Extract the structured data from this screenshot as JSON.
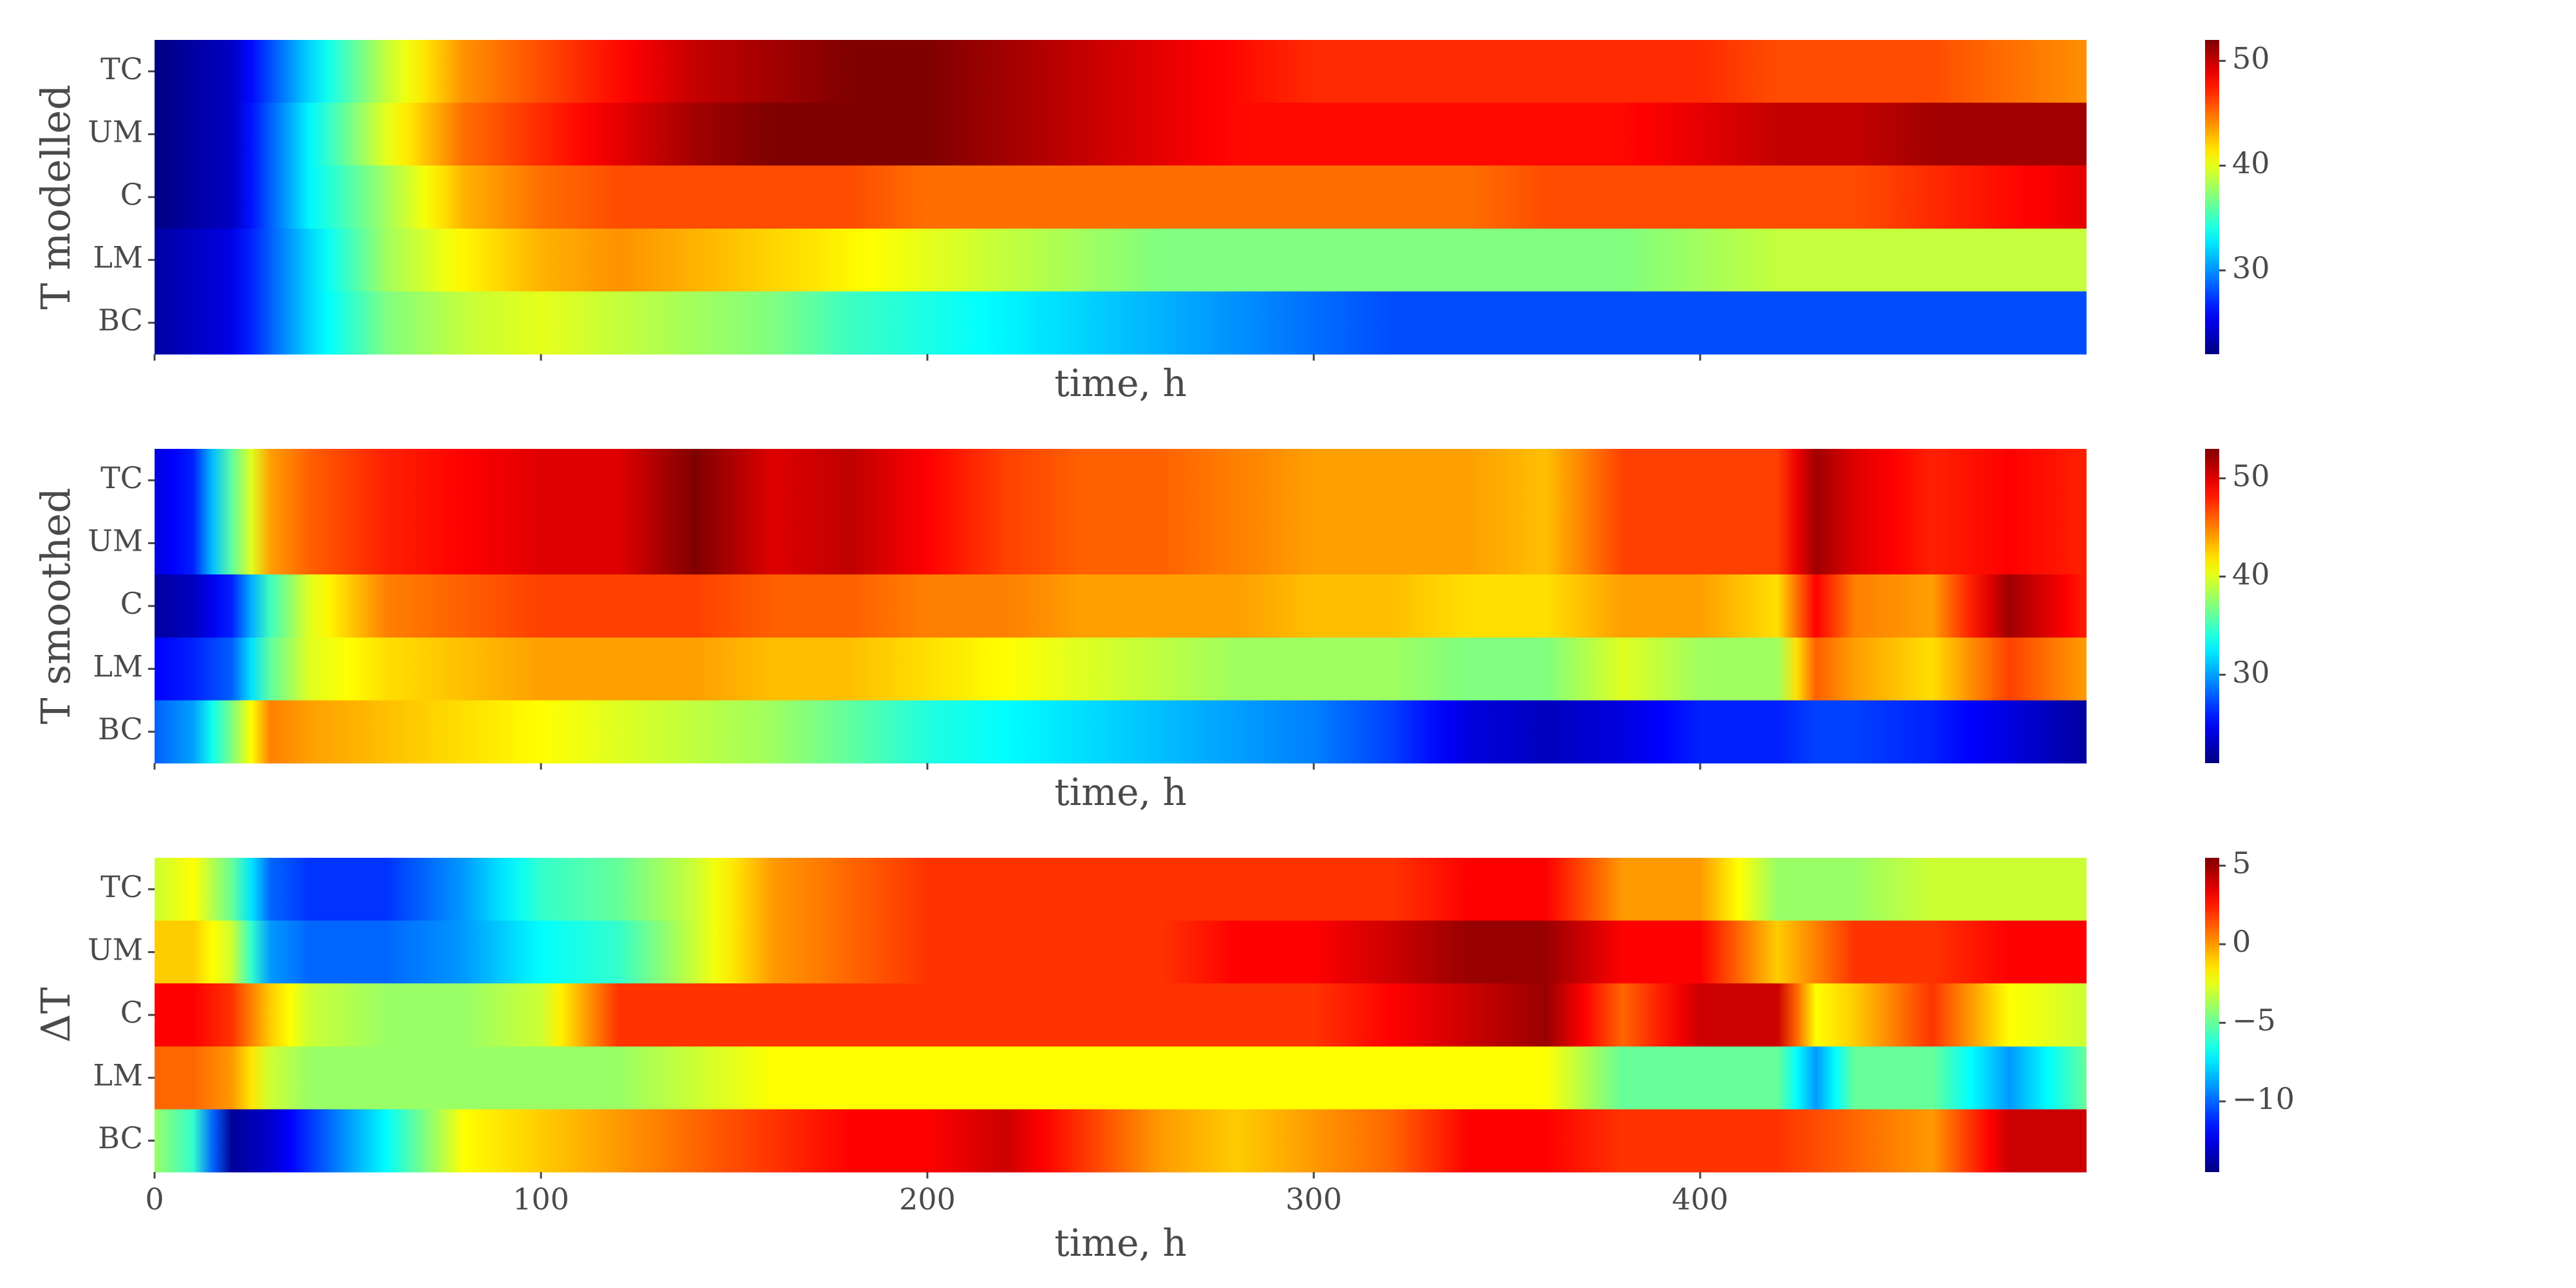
{
  "chart_data": [
    {
      "type": "heatmap",
      "ylabel": "T modelled",
      "xlabel": "time, h",
      "rows": [
        "TC",
        "UM",
        "C",
        "LM",
        "BC"
      ],
      "x_range": [
        0,
        500
      ],
      "x_ticks": [
        0,
        100,
        200,
        300,
        400
      ],
      "x_tick_labels_shown": false,
      "colormap": "jet",
      "vmin": 22,
      "vmax": 52,
      "colorbar_ticks": [
        30,
        40,
        50
      ],
      "colorbar_tick_labels": [
        "30",
        "40",
        "50"
      ],
      "series": [
        {
          "name": "TC",
          "x": [
            0,
            20,
            40,
            60,
            80,
            100,
            120,
            140,
            160,
            180,
            200,
            220,
            240,
            260,
            280,
            300,
            320,
            340,
            360,
            380,
            400,
            420,
            440,
            460,
            480,
            500
          ],
          "values": [
            22,
            24,
            32,
            39,
            44,
            46,
            48,
            50,
            51,
            52,
            52,
            51,
            50,
            49,
            48,
            47,
            47,
            47,
            47,
            47,
            47,
            46,
            46,
            46,
            45,
            44
          ]
        },
        {
          "name": "UM",
          "x": [
            0,
            20,
            40,
            60,
            80,
            100,
            120,
            140,
            160,
            180,
            200,
            220,
            240,
            260,
            280,
            300,
            320,
            340,
            360,
            380,
            400,
            420,
            440,
            460,
            480,
            500
          ],
          "values": [
            22,
            24,
            33,
            40,
            45,
            47,
            49,
            51,
            52,
            52,
            52,
            51,
            50,
            49,
            48,
            48,
            48,
            48,
            48,
            48,
            49,
            50,
            50,
            51,
            51,
            51
          ]
        },
        {
          "name": "C",
          "x": [
            0,
            20,
            40,
            60,
            80,
            100,
            120,
            140,
            160,
            180,
            200,
            220,
            240,
            260,
            280,
            300,
            320,
            340,
            360,
            380,
            400,
            420,
            440,
            460,
            480,
            500
          ],
          "values": [
            22,
            24,
            33,
            38,
            43,
            45,
            46,
            46,
            46,
            46,
            45,
            45,
            45,
            45,
            45,
            45,
            45,
            45,
            46,
            46,
            46,
            46,
            46,
            47,
            48,
            49
          ]
        },
        {
          "name": "LM",
          "x": [
            0,
            20,
            40,
            60,
            80,
            100,
            120,
            140,
            160,
            180,
            200,
            220,
            240,
            260,
            280,
            300,
            320,
            340,
            360,
            380,
            400,
            420,
            440,
            460,
            480,
            500
          ],
          "values": [
            23,
            25,
            32,
            38,
            41,
            43,
            44,
            43,
            42,
            41,
            40,
            39,
            38,
            37,
            37,
            37,
            37,
            37,
            37,
            37,
            38,
            39,
            39,
            39,
            39,
            39
          ]
        },
        {
          "name": "BC",
          "x": [
            0,
            20,
            40,
            60,
            80,
            100,
            120,
            140,
            160,
            180,
            200,
            220,
            240,
            260,
            280,
            300,
            320,
            340,
            360,
            380,
            400,
            420,
            440,
            460,
            480,
            500
          ],
          "values": [
            23,
            25,
            32,
            37,
            39,
            40,
            39,
            38,
            37,
            35,
            34,
            33,
            32,
            31,
            30,
            29,
            28,
            28,
            28,
            28,
            28,
            28,
            28,
            28,
            28,
            28
          ]
        }
      ]
    },
    {
      "type": "heatmap",
      "ylabel": "T smoothed",
      "xlabel": "time, h",
      "rows": [
        "TC",
        "UM",
        "C",
        "LM",
        "BC"
      ],
      "x_range": [
        0,
        500
      ],
      "x_ticks": [
        0,
        100,
        200,
        300,
        400
      ],
      "x_tick_labels_shown": false,
      "colormap": "jet",
      "vmin": 21,
      "vmax": 53,
      "colorbar_ticks": [
        30,
        40,
        50
      ],
      "colorbar_tick_labels": [
        "30",
        "40",
        "50"
      ],
      "series": [
        {
          "name": "TC",
          "x": [
            0,
            10,
            20,
            30,
            40,
            60,
            80,
            100,
            120,
            140,
            160,
            180,
            200,
            220,
            240,
            260,
            280,
            300,
            320,
            340,
            360,
            380,
            400,
            420,
            430,
            440,
            460,
            480,
            500
          ],
          "values": [
            24,
            26,
            36,
            44,
            46,
            48,
            49,
            50,
            50,
            53,
            50,
            51,
            49,
            47,
            46,
            46,
            45,
            44,
            44,
            44,
            43,
            47,
            47,
            47,
            52,
            50,
            48,
            49,
            48
          ]
        },
        {
          "name": "UM",
          "x": [
            0,
            10,
            20,
            30,
            40,
            60,
            80,
            100,
            120,
            140,
            160,
            180,
            200,
            220,
            240,
            260,
            280,
            300,
            320,
            340,
            360,
            380,
            400,
            420,
            430,
            440,
            460,
            480,
            500
          ],
          "values": [
            24,
            26,
            36,
            44,
            46,
            48,
            49,
            50,
            50,
            53,
            50,
            51,
            49,
            47,
            46,
            46,
            45,
            44,
            44,
            44,
            43,
            47,
            47,
            47,
            52,
            50,
            48,
            49,
            48
          ]
        },
        {
          "name": "C",
          "x": [
            0,
            10,
            20,
            30,
            40,
            60,
            80,
            100,
            120,
            140,
            160,
            180,
            200,
            220,
            240,
            260,
            280,
            300,
            320,
            340,
            360,
            380,
            400,
            420,
            430,
            440,
            460,
            480,
            500
          ],
          "values": [
            22,
            23,
            26,
            35,
            40,
            45,
            46,
            47,
            47,
            47,
            46,
            46,
            45,
            45,
            44,
            44,
            44,
            43,
            43,
            42,
            42,
            44,
            44,
            42,
            49,
            45,
            44,
            52,
            48
          ]
        },
        {
          "name": "LM",
          "x": [
            0,
            10,
            20,
            30,
            40,
            60,
            80,
            100,
            120,
            140,
            160,
            180,
            200,
            220,
            240,
            260,
            280,
            300,
            320,
            340,
            360,
            380,
            400,
            420,
            430,
            440,
            460,
            480,
            500
          ],
          "values": [
            25,
            26,
            28,
            36,
            40,
            42,
            43,
            44,
            44,
            44,
            43,
            43,
            42,
            41,
            40,
            39,
            38,
            38,
            38,
            37,
            37,
            40,
            38,
            38,
            46,
            44,
            42,
            47,
            44
          ]
        },
        {
          "name": "BC",
          "x": [
            0,
            10,
            20,
            30,
            40,
            60,
            80,
            100,
            120,
            140,
            160,
            180,
            200,
            220,
            240,
            260,
            280,
            300,
            320,
            340,
            360,
            380,
            400,
            420,
            430,
            440,
            460,
            480,
            500
          ],
          "values": [
            28,
            30,
            37,
            45,
            44,
            43,
            42,
            41,
            40,
            39,
            38,
            36,
            34,
            33,
            32,
            31,
            30,
            29,
            27,
            24,
            23,
            24,
            26,
            26,
            27,
            27,
            26,
            24,
            22
          ]
        }
      ]
    },
    {
      "type": "heatmap",
      "ylabel": "ΔT",
      "xlabel": "time, h",
      "rows": [
        "TC",
        "UM",
        "C",
        "LM",
        "BC"
      ],
      "x_range": [
        0,
        500
      ],
      "x_ticks": [
        0,
        100,
        200,
        300,
        400
      ],
      "x_tick_labels_shown": true,
      "x_tick_labels": [
        "0",
        "100",
        "200",
        "300",
        "400"
      ],
      "colormap": "jet",
      "vmin": -14.5,
      "vmax": 5.5,
      "colorbar_ticks": [
        5,
        0,
        -5,
        -10
      ],
      "colorbar_tick_labels": [
        "5",
        "0",
        "−5",
        "−10"
      ],
      "series": [
        {
          "name": "TC",
          "x": [
            0,
            10,
            20,
            30,
            40,
            60,
            80,
            100,
            120,
            140,
            160,
            180,
            200,
            220,
            240,
            260,
            280,
            300,
            320,
            340,
            360,
            380,
            400,
            420,
            440,
            460,
            480,
            500
          ],
          "values": [
            -3,
            -2,
            -5,
            -10,
            -11,
            -11,
            -9,
            -6,
            -5,
            -3,
            0,
            1,
            2,
            2,
            2,
            2,
            2,
            2,
            2,
            3,
            3,
            0,
            0,
            -4,
            -4,
            -3,
            -3,
            -3
          ]
        },
        {
          "name": "UM",
          "x": [
            0,
            10,
            20,
            30,
            40,
            60,
            80,
            100,
            120,
            140,
            160,
            180,
            200,
            220,
            240,
            260,
            280,
            300,
            320,
            340,
            360,
            380,
            400,
            420,
            440,
            460,
            480,
            500
          ],
          "values": [
            -1,
            -1,
            -3,
            -9,
            -10,
            -10,
            -9,
            -7,
            -6,
            -3,
            0,
            1,
            2,
            2,
            2,
            2,
            3,
            3,
            4,
            5,
            5,
            3,
            3,
            -1,
            2,
            2,
            3,
            3
          ]
        },
        {
          "name": "C",
          "x": [
            0,
            10,
            20,
            30,
            40,
            60,
            80,
            100,
            120,
            140,
            160,
            180,
            200,
            220,
            240,
            260,
            280,
            300,
            320,
            340,
            360,
            380,
            400,
            420,
            430,
            440,
            460,
            480,
            500
          ],
          "values": [
            3,
            3,
            2,
            -1,
            -3,
            -4,
            -4,
            -3,
            2,
            2,
            2,
            2,
            2,
            2,
            2,
            2,
            2,
            2,
            3,
            4,
            5,
            1,
            4,
            4,
            -2,
            -1,
            2,
            -2,
            -3
          ]
        },
        {
          "name": "LM",
          "x": [
            0,
            10,
            20,
            30,
            40,
            60,
            80,
            100,
            120,
            140,
            160,
            180,
            200,
            220,
            240,
            260,
            280,
            300,
            320,
            340,
            360,
            380,
            400,
            420,
            430,
            440,
            460,
            480,
            500
          ],
          "values": [
            1,
            1,
            0,
            -3,
            -4,
            -4,
            -4,
            -4,
            -4,
            -3,
            -2,
            -2,
            -2,
            -2,
            -2,
            -2,
            -2,
            -2,
            -2,
            -2,
            -2,
            -5,
            -5,
            -5,
            -9,
            -5,
            -5,
            -9,
            -5
          ]
        },
        {
          "name": "BC",
          "x": [
            0,
            10,
            15,
            20,
            30,
            40,
            60,
            80,
            100,
            120,
            140,
            160,
            180,
            200,
            220,
            240,
            260,
            280,
            300,
            320,
            340,
            360,
            380,
            400,
            420,
            440,
            460,
            480,
            500
          ],
          "values": [
            -4,
            -6,
            -10,
            -14,
            -13,
            -11,
            -7,
            -2,
            -1,
            0,
            1,
            2,
            3,
            3,
            4,
            2,
            0,
            -1,
            0,
            1,
            3,
            3,
            2,
            2,
            2,
            1,
            0,
            4,
            4
          ]
        }
      ]
    }
  ]
}
